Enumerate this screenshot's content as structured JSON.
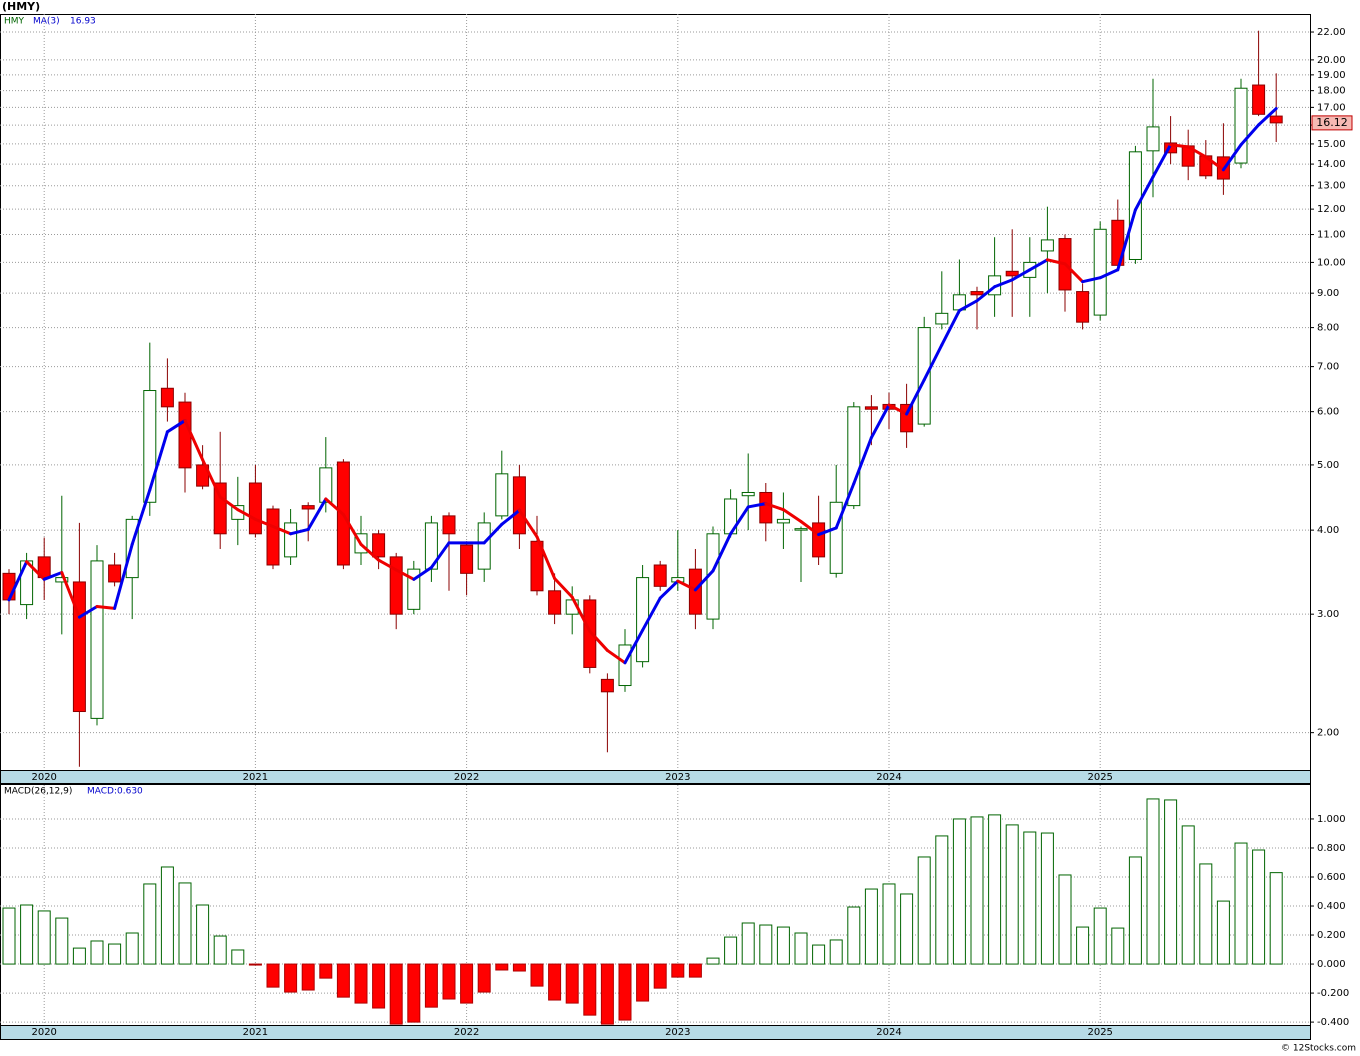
{
  "chart_data": [
    {
      "type": "candlestick",
      "title": "(HMY)",
      "ticker": "HMY",
      "ma_value_label": "16.93",
      "close_label": "16.12",
      "log": true,
      "grid": true,
      "up_color": "#006400",
      "down_color": "#ff0000",
      "categories": [
        null,
        null,
        "2020",
        null,
        null,
        null,
        null,
        null,
        null,
        null,
        null,
        null,
        null,
        null,
        "2021",
        null,
        null,
        null,
        null,
        null,
        null,
        null,
        null,
        null,
        null,
        null,
        "2022",
        null,
        null,
        null,
        null,
        null,
        null,
        null,
        null,
        null,
        null,
        null,
        "2023",
        null,
        null,
        null,
        null,
        null,
        null,
        null,
        null,
        null,
        null,
        null,
        "2024",
        null,
        null,
        null,
        null,
        null,
        null,
        null,
        null,
        null,
        null,
        null,
        "2025",
        null,
        null,
        null,
        null,
        null,
        null,
        null,
        null,
        null,
        null
      ],
      "open": [
        3.45,
        3.1,
        3.65,
        3.35,
        3.35,
        2.1,
        3.55,
        3.4,
        4.4,
        6.5,
        6.2,
        5.0,
        4.7,
        4.15,
        4.7,
        4.3,
        3.65,
        4.35,
        4.4,
        5.05,
        3.7,
        3.95,
        3.65,
        3.05,
        3.5,
        4.2,
        3.8,
        3.5,
        4.2,
        4.8,
        3.85,
        3.25,
        3.0,
        3.15,
        2.4,
        2.35,
        2.55,
        3.55,
        3.35,
        3.5,
        2.95,
        3.95,
        4.5,
        4.55,
        4.1,
        4.0,
        4.1,
        3.45,
        4.35,
        6.1,
        6.15,
        6.15,
        5.75,
        8.1,
        8.5,
        9.05,
        8.95,
        9.7,
        9.5,
        10.4,
        10.85,
        9.05,
        8.35,
        11.55,
        10.1,
        14.65,
        15.05,
        14.9,
        14.4,
        14.35,
        14.05,
        18.35,
        16.5
      ],
      "high": [
        3.5,
        3.7,
        3.9,
        4.5,
        4.1,
        3.8,
        3.7,
        4.2,
        7.6,
        7.2,
        6.4,
        5.35,
        5.6,
        4.8,
        5.0,
        4.35,
        4.3,
        4.4,
        5.5,
        5.1,
        4.2,
        4.0,
        3.7,
        3.6,
        4.2,
        4.25,
        3.85,
        4.25,
        5.25,
        5.0,
        4.2,
        3.45,
        3.3,
        3.2,
        2.45,
        2.85,
        3.55,
        3.6,
        4.0,
        3.75,
        4.05,
        4.6,
        5.2,
        4.7,
        4.55,
        4.05,
        4.5,
        5.0,
        6.2,
        6.35,
        6.4,
        6.6,
        8.3,
        9.7,
        10.1,
        9.2,
        10.9,
        11.2,
        10.9,
        12.1,
        11.0,
        9.3,
        11.5,
        12.4,
        14.9,
        18.75,
        16.5,
        15.75,
        15.2,
        16.1,
        18.75,
        22.1,
        19.1
      ],
      "low": [
        3.0,
        2.95,
        3.15,
        2.8,
        1.78,
        2.05,
        3.3,
        2.95,
        4.2,
        5.8,
        4.55,
        4.6,
        3.75,
        3.8,
        3.9,
        3.5,
        3.55,
        3.85,
        4.25,
        3.5,
        3.55,
        3.5,
        2.85,
        3.0,
        3.35,
        3.25,
        3.2,
        3.35,
        4.15,
        3.75,
        3.2,
        2.9,
        2.8,
        2.45,
        1.87,
        2.3,
        2.5,
        3.25,
        3.25,
        2.85,
        2.85,
        3.9,
        4.0,
        3.85,
        3.75,
        3.35,
        3.55,
        3.4,
        4.3,
        5.35,
        5.65,
        5.3,
        5.7,
        7.95,
        8.4,
        7.95,
        8.3,
        8.3,
        8.3,
        9.0,
        8.45,
        7.95,
        8.2,
        9.8,
        9.95,
        12.5,
        14.0,
        13.25,
        13.3,
        12.6,
        13.8,
        16.5,
        15.1
      ],
      "close": [
        3.15,
        3.6,
        3.4,
        3.4,
        2.15,
        3.6,
        3.35,
        4.15,
        6.45,
        6.1,
        4.95,
        4.65,
        3.95,
        4.35,
        3.95,
        3.55,
        4.1,
        4.3,
        4.95,
        3.55,
        3.95,
        3.65,
        3.0,
        3.5,
        4.1,
        3.95,
        3.45,
        4.1,
        4.85,
        3.95,
        3.25,
        3.0,
        3.15,
        2.5,
        2.3,
        2.7,
        3.4,
        3.3,
        3.4,
        3.0,
        3.95,
        4.45,
        4.55,
        4.1,
        4.15,
        4.02,
        3.65,
        4.4,
        6.1,
        6.05,
        6.05,
        5.6,
        8.0,
        8.4,
        8.95,
        8.95,
        9.55,
        9.55,
        10.0,
        10.8,
        9.1,
        8.15,
        11.2,
        9.9,
        14.6,
        15.9,
        14.55,
        13.9,
        13.45,
        13.3,
        18.15,
        16.6,
        16.12
      ],
      "series": [
        {
          "name": "MA(3)",
          "up_color": "#0000ee",
          "down_color": "#ee0000",
          "values": [
            3.15,
            3.59,
            3.38,
            3.46,
            2.97,
            3.08,
            3.06,
            3.81,
            4.59,
            5.6,
            5.82,
            5.09,
            4.48,
            4.29,
            4.15,
            4.05,
            3.95,
            4.01,
            4.45,
            4.22,
            3.81,
            3.61,
            3.49,
            3.38,
            3.52,
            3.83,
            3.83,
            3.83,
            4.08,
            4.28,
            3.91,
            3.39,
            3.18,
            2.83,
            2.65,
            2.54,
            2.84,
            3.17,
            3.36,
            3.26,
            3.48,
            3.95,
            4.33,
            4.38,
            4.29,
            4.12,
            3.94,
            4.03,
            4.69,
            5.49,
            6.14,
            5.95,
            6.69,
            7.54,
            8.48,
            8.77,
            9.2,
            9.42,
            9.75,
            10.09,
            9.95,
            9.36,
            9.49,
            9.75,
            11.97,
            13.4,
            14.96,
            14.85,
            14.35,
            13.73,
            14.96,
            16.01,
            16.93
          ]
        }
      ],
      "ylim": [
        1.76,
        23.4
      ],
      "yticks": [
        {
          "value": 2,
          "label": "2.00"
        },
        {
          "value": 3,
          "label": "3.00"
        },
        {
          "value": 4,
          "label": "4.00"
        },
        {
          "value": 5,
          "label": "5.00"
        },
        {
          "value": 6,
          "label": "6.00"
        },
        {
          "value": 7,
          "label": "7.00"
        },
        {
          "value": 8,
          "label": "8.00"
        },
        {
          "value": 9,
          "label": "9.00"
        },
        {
          "value": 10,
          "label": "10.00"
        },
        {
          "value": 11,
          "label": "11.00"
        },
        {
          "value": 12,
          "label": "12.00"
        },
        {
          "value": 13,
          "label": "13.00"
        },
        {
          "value": 14,
          "label": "14.00"
        },
        {
          "value": 15,
          "label": "15.00"
        },
        {
          "value": 16,
          "label": "16.00"
        },
        {
          "value": 17,
          "label": "17.00"
        },
        {
          "value": 18,
          "label": "18.00"
        },
        {
          "value": 19,
          "label": "19.00"
        },
        {
          "value": 20,
          "label": "20.00"
        },
        {
          "value": 22,
          "label": "22.00"
        }
      ]
    },
    {
      "type": "bar",
      "title": "MACD(26,12,9)",
      "value_label": "MACD:0.630",
      "grid": true,
      "up_color": "#006400",
      "down_color": "#ff0000",
      "categories": [
        null,
        null,
        "2020",
        null,
        null,
        null,
        null,
        null,
        null,
        null,
        null,
        null,
        null,
        null,
        "2021",
        null,
        null,
        null,
        null,
        null,
        null,
        null,
        null,
        null,
        null,
        null,
        "2022",
        null,
        null,
        null,
        null,
        null,
        null,
        null,
        null,
        null,
        null,
        null,
        "2023",
        null,
        null,
        null,
        null,
        null,
        null,
        null,
        null,
        null,
        null,
        null,
        "2024",
        null,
        null,
        null,
        null,
        null,
        null,
        null,
        null,
        null,
        null,
        null,
        "2025",
        null,
        null,
        null,
        null,
        null,
        null,
        null,
        null,
        null,
        null
      ],
      "values": [
        0.386,
        0.407,
        0.366,
        0.317,
        0.11,
        0.159,
        0.138,
        0.214,
        0.552,
        0.669,
        0.559,
        0.407,
        0.193,
        0.097,
        -0.005,
        -0.159,
        -0.193,
        -0.179,
        -0.097,
        -0.228,
        -0.269,
        -0.303,
        -0.414,
        -0.4,
        -0.297,
        -0.241,
        -0.269,
        -0.193,
        -0.041,
        -0.048,
        -0.152,
        -0.248,
        -0.269,
        -0.352,
        -0.414,
        -0.386,
        -0.255,
        -0.166,
        -0.09,
        -0.09,
        0.041,
        0.186,
        0.283,
        0.269,
        0.255,
        0.214,
        0.131,
        0.166,
        0.393,
        0.517,
        0.552,
        0.483,
        0.738,
        0.883,
        1.0,
        1.014,
        1.028,
        0.959,
        0.91,
        0.903,
        0.614,
        0.255,
        0.386,
        0.248,
        0.738,
        1.138,
        1.131,
        0.952,
        0.69,
        0.434,
        0.834,
        0.786,
        0.63
      ],
      "ylim": [
        -0.42,
        1.234
      ],
      "yticks": [
        {
          "value": 1,
          "label": "1.000"
        },
        {
          "value": 0.8,
          "label": "0.800"
        },
        {
          "value": 0.6,
          "label": "0.600"
        },
        {
          "value": 0.4,
          "label": "0.400"
        },
        {
          "value": 0.2,
          "label": "0.200"
        },
        {
          "value": 0,
          "label": "0.000"
        },
        {
          "value": -0.2,
          "label": "-0.200"
        },
        {
          "value": -0.4,
          "label": "-0.400"
        }
      ]
    }
  ],
  "footer": "© 12Stocks.com"
}
